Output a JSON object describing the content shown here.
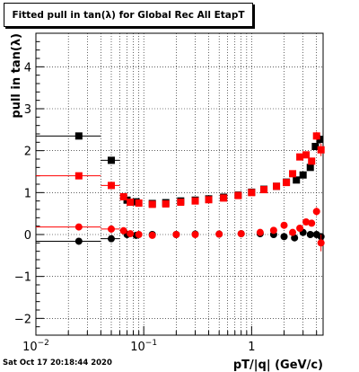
{
  "window": {
    "title": "Fitted pull in tan(λ) for Global Rec All EtapT"
  },
  "footer": {
    "timestamp": "Sat Oct 17 20:18:44 2020"
  },
  "colors": {
    "black_series": "#000000",
    "red_series": "#ff0000",
    "axis": "#000000",
    "grid": "#000000"
  },
  "chart_data": {
    "type": "scatter",
    "title": "Fitted pull in tan(λ) for Global Rec All EtapT",
    "xlabel": "pT/|q| (GeV/c)",
    "ylabel": "pull in tan(λ)",
    "xscale": "log",
    "xlim": [
      0.01,
      4.6
    ],
    "ylim": [
      -2.4,
      4.8
    ],
    "grid": true,
    "x_ticks": [
      {
        "value": 0.01,
        "label": "10",
        "exp": "−2"
      },
      {
        "value": 0.1,
        "label": "10",
        "exp": "−1"
      },
      {
        "value": 1,
        "label": "1",
        "exp": ""
      }
    ],
    "y_ticks": [
      {
        "value": -2,
        "label": "−2"
      },
      {
        "value": -1,
        "label": "−1"
      },
      {
        "value": 0,
        "label": "0"
      },
      {
        "value": 1,
        "label": "1"
      },
      {
        "value": 2,
        "label": "2"
      },
      {
        "value": 3,
        "label": "3"
      },
      {
        "value": 4,
        "label": "4"
      }
    ],
    "series": [
      {
        "name": "",
        "group": "sigma",
        "color": "#000000",
        "marker": "square",
        "points": [
          [
            0.025,
            2.35,
            0.015,
            0.04
          ],
          [
            0.05,
            1.77,
            0.01,
            0.03
          ],
          [
            0.07,
            0.82,
            0.003,
            0.02
          ],
          [
            0.085,
            0.78,
            0.003,
            0.02
          ],
          [
            0.12,
            0.74,
            0,
            0
          ],
          [
            0.16,
            0.76,
            0,
            0
          ],
          [
            0.22,
            0.8,
            0,
            0
          ],
          [
            0.3,
            0.82,
            0,
            0
          ],
          [
            0.4,
            0.85,
            0,
            0
          ],
          [
            0.55,
            0.89,
            0,
            0
          ],
          [
            0.75,
            0.94,
            0,
            0
          ],
          [
            1.0,
            1.01,
            0,
            0
          ],
          [
            1.3,
            1.08,
            0,
            0
          ],
          [
            1.7,
            1.15,
            0,
            0
          ],
          [
            2.1,
            1.25,
            0,
            0
          ],
          [
            2.6,
            1.3,
            0,
            0
          ],
          [
            3.0,
            1.42,
            0,
            0
          ],
          [
            3.5,
            1.6,
            0,
            0
          ],
          [
            3.9,
            2.1,
            0,
            0.08
          ],
          [
            4.3,
            2.27,
            0,
            0.1
          ]
        ]
      },
      {
        "name": "",
        "group": "sigma",
        "color": "#ff0000",
        "marker": "square",
        "points": [
          [
            0.025,
            1.4,
            0.015,
            0.03
          ],
          [
            0.05,
            1.17,
            0.01,
            0.02
          ],
          [
            0.065,
            0.9,
            0.003,
            0.02
          ],
          [
            0.075,
            0.77,
            0.003,
            0.02
          ],
          [
            0.09,
            0.75,
            0,
            0
          ],
          [
            0.12,
            0.72,
            0,
            0
          ],
          [
            0.16,
            0.73,
            0,
            0
          ],
          [
            0.22,
            0.77,
            0,
            0
          ],
          [
            0.3,
            0.8,
            0,
            0
          ],
          [
            0.4,
            0.83,
            0,
            0
          ],
          [
            0.55,
            0.87,
            0,
            0
          ],
          [
            0.75,
            0.93,
            0,
            0
          ],
          [
            1.0,
            1.0,
            0,
            0
          ],
          [
            1.3,
            1.07,
            0,
            0
          ],
          [
            1.7,
            1.15,
            0,
            0
          ],
          [
            2.1,
            1.24,
            0,
            0
          ],
          [
            2.4,
            1.45,
            0,
            0
          ],
          [
            2.8,
            1.85,
            0,
            0
          ],
          [
            3.2,
            1.9,
            0,
            0
          ],
          [
            3.6,
            1.75,
            0,
            0
          ],
          [
            4.0,
            2.35,
            0,
            0.1
          ],
          [
            4.4,
            2.02,
            0,
            0.15
          ]
        ]
      },
      {
        "name": "",
        "group": "mean",
        "color": "#000000",
        "marker": "circle",
        "points": [
          [
            0.025,
            -0.16,
            0.015,
            0.03
          ],
          [
            0.05,
            -0.1,
            0.01,
            0.02
          ],
          [
            0.07,
            0.0,
            0.003,
            0.02
          ],
          [
            0.085,
            -0.02,
            0.003,
            0.02
          ],
          [
            0.12,
            0.0,
            0,
            0
          ],
          [
            0.2,
            0.0,
            0,
            0
          ],
          [
            0.3,
            0.01,
            0,
            0
          ],
          [
            0.5,
            0.01,
            0,
            0
          ],
          [
            0.8,
            0.02,
            0,
            0
          ],
          [
            1.2,
            0.02,
            0,
            0
          ],
          [
            1.6,
            0.0,
            0,
            0
          ],
          [
            2.0,
            -0.05,
            0,
            0
          ],
          [
            2.5,
            -0.08,
            0,
            0
          ],
          [
            3.0,
            0.05,
            0,
            0
          ],
          [
            3.5,
            0.0,
            0,
            0
          ],
          [
            4.0,
            0.0,
            0,
            0
          ],
          [
            4.4,
            -0.05,
            0,
            0.05
          ]
        ]
      },
      {
        "name": "",
        "group": "mean",
        "color": "#ff0000",
        "marker": "circle",
        "points": [
          [
            0.025,
            0.18,
            0.015,
            0.03
          ],
          [
            0.05,
            0.13,
            0.01,
            0.02
          ],
          [
            0.065,
            0.09,
            0.003,
            0.02
          ],
          [
            0.075,
            0.02,
            0.003,
            0.02
          ],
          [
            0.09,
            0.0,
            0,
            0
          ],
          [
            0.12,
            -0.02,
            0,
            0
          ],
          [
            0.2,
            0.0,
            0,
            0
          ],
          [
            0.3,
            0.0,
            0,
            0
          ],
          [
            0.5,
            0.01,
            0,
            0
          ],
          [
            0.8,
            0.02,
            0,
            0
          ],
          [
            1.2,
            0.05,
            0,
            0
          ],
          [
            1.6,
            0.1,
            0,
            0
          ],
          [
            2.0,
            0.22,
            0,
            0
          ],
          [
            2.4,
            0.05,
            0,
            0
          ],
          [
            2.8,
            0.15,
            0,
            0
          ],
          [
            3.2,
            0.3,
            0,
            0
          ],
          [
            3.6,
            0.27,
            0,
            0
          ],
          [
            4.0,
            0.55,
            0,
            0.1
          ],
          [
            4.4,
            -0.2,
            0,
            0.2
          ]
        ]
      }
    ]
  }
}
